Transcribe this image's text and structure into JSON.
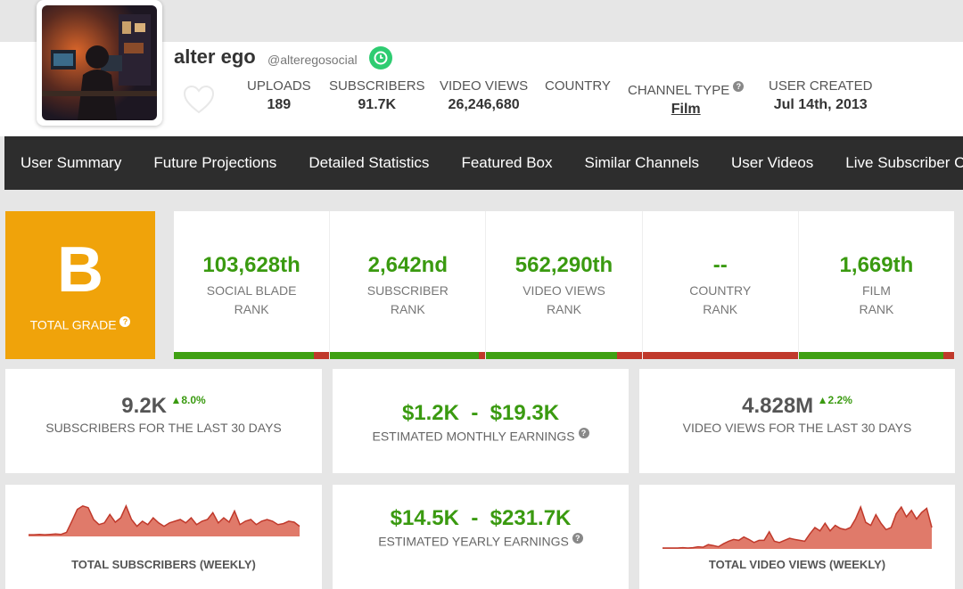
{
  "channel": {
    "name": "alter ego",
    "handle": "@alteregosocial"
  },
  "header_stats": [
    {
      "label": "UPLOADS",
      "value": "189"
    },
    {
      "label": "SUBSCRIBERS",
      "value": "91.7K"
    },
    {
      "label": "VIDEO VIEWS",
      "value": "26,246,680"
    },
    {
      "label": "COUNTRY",
      "value": ""
    },
    {
      "label": "CHANNEL TYPE",
      "value": "Film"
    },
    {
      "label": "USER CREATED",
      "value": "Jul 14th, 2013"
    }
  ],
  "nav": [
    "User Summary",
    "Future Projections",
    "Detailed Statistics",
    "Featured Box",
    "Similar Channels",
    "User Videos",
    "Live Subscriber Count"
  ],
  "grade": {
    "letter": "B",
    "label": "TOTAL GRADE"
  },
  "ranks": [
    {
      "value": "103,628th",
      "label1": "SOCIAL BLADE",
      "label2": "RANK",
      "green_fraction": 0.9
    },
    {
      "value": "2,642nd",
      "label1": "SUBSCRIBER",
      "label2": "RANK",
      "green_fraction": 0.96
    },
    {
      "value": "562,290th",
      "label1": "VIDEO VIEWS",
      "label2": "RANK",
      "green_fraction": 0.84
    },
    {
      "value": "--",
      "label1": "COUNTRY",
      "label2": "RANK",
      "green_fraction": 0
    },
    {
      "value": "1,669th",
      "label1": "FILM",
      "label2": "RANK",
      "green_fraction": 0.93
    }
  ],
  "cards": {
    "subs30": {
      "value": "9.2K",
      "delta": "8.0%",
      "label": "SUBSCRIBERS FOR THE LAST 30 DAYS"
    },
    "monthly": {
      "value": "$1.2K  -  $19.3K",
      "label": "ESTIMATED MONTHLY EARNINGS"
    },
    "views30": {
      "value": "4.828M",
      "delta": "2.2%",
      "label": "VIDEO VIEWS FOR THE LAST 30 DAYS"
    },
    "yearly": {
      "value": "$14.5K  -  $231.7K",
      "label": "ESTIMATED YEARLY EARNINGS"
    },
    "total_subs_title": "TOTAL SUBSCRIBERS (WEEKLY)",
    "total_views_title": "TOTAL VIDEO VIEWS (WEEKLY)"
  },
  "colors": {
    "grade": "#f0a30a",
    "rank_green": "#3a9a10",
    "bar_red": "#c0392b",
    "nav_bg": "#2d2d2d",
    "sparkline": "#e07a6a"
  },
  "sparklines": {
    "subs": [
      0.05,
      0.05,
      0.06,
      0.05,
      0.06,
      0.07,
      0.06,
      0.12,
      0.45,
      0.8,
      0.9,
      0.85,
      0.5,
      0.35,
      0.4,
      0.65,
      0.42,
      0.55,
      0.9,
      0.5,
      0.3,
      0.45,
      0.35,
      0.55,
      0.4,
      0.3,
      0.4,
      0.45,
      0.5,
      0.4,
      0.55,
      0.35,
      0.45,
      0.5,
      0.7,
      0.4,
      0.55,
      0.42,
      0.75,
      0.35,
      0.45,
      0.5,
      0.35,
      0.45,
      0.5,
      0.45,
      0.35,
      0.38,
      0.45,
      0.42,
      0.3
    ],
    "views": [
      0.02,
      0.02,
      0.02,
      0.02,
      0.03,
      0.02,
      0.03,
      0.05,
      0.04,
      0.1,
      0.08,
      0.05,
      0.12,
      0.18,
      0.22,
      0.2,
      0.28,
      0.22,
      0.15,
      0.2,
      0.2,
      0.4,
      0.18,
      0.15,
      0.2,
      0.25,
      0.22,
      0.2,
      0.18,
      0.35,
      0.5,
      0.42,
      0.6,
      0.42,
      0.55,
      0.48,
      0.45,
      0.5,
      0.7,
      0.98,
      0.62,
      0.55,
      0.8,
      0.6,
      0.45,
      0.5,
      0.82,
      0.98,
      0.75,
      0.9,
      0.7,
      0.85,
      0.95,
      0.5
    ]
  }
}
